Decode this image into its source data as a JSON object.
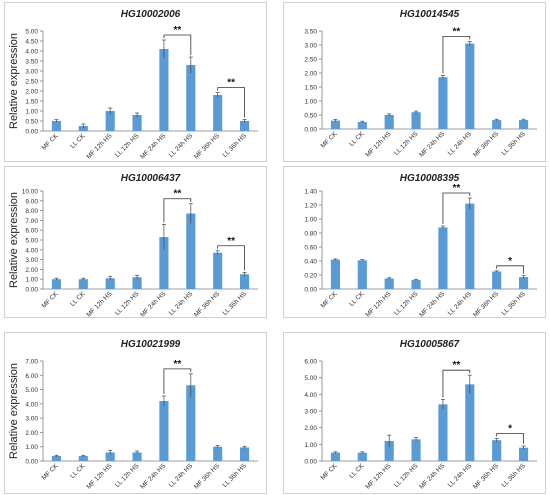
{
  "colors": {
    "bar": "#5b9bd5",
    "axis": "#7f7f7f",
    "text": "#333333",
    "title": "#222222"
  },
  "categories": [
    "MF CK",
    "LL CK",
    "MF 12h HS",
    "LL 12h HS",
    "MF 24h HS",
    "LL 24h HS",
    "MF 36h HS",
    "LL 36h HS"
  ],
  "chart_data": [
    {
      "type": "bar",
      "title": "HG10002006",
      "ylabel": "Relative expression",
      "ylim": [
        0,
        5
      ],
      "yticks": [
        "0.00",
        "0.50",
        "1.00",
        "1.50",
        "2.00",
        "2.50",
        "3.00",
        "3.50",
        "4.00",
        "4.50",
        "5.00"
      ],
      "values": [
        0.5,
        0.25,
        1.0,
        0.8,
        4.1,
        3.3,
        1.8,
        0.5
      ],
      "errors": [
        0.07,
        0.1,
        0.15,
        0.1,
        0.45,
        0.4,
        0.12,
        0.08
      ],
      "significance": [
        {
          "from": 4,
          "to": 5,
          "label": "**"
        },
        {
          "from": 6,
          "to": 7,
          "label": "**"
        }
      ]
    },
    {
      "type": "bar",
      "title": "HG10014545",
      "ylabel": "",
      "ylim": [
        0,
        3.5
      ],
      "yticks": [
        "0.00",
        "0.50",
        "1.00",
        "1.50",
        "2.00",
        "2.50",
        "3.00",
        "3.50"
      ],
      "values": [
        0.3,
        0.25,
        0.5,
        0.6,
        1.85,
        3.05,
        0.32,
        0.32
      ],
      "errors": [
        0.04,
        0.03,
        0.04,
        0.04,
        0.06,
        0.08,
        0.03,
        0.03
      ],
      "significance": [
        {
          "from": 4,
          "to": 5,
          "label": "**"
        }
      ]
    },
    {
      "type": "bar",
      "title": "HG10006437",
      "ylabel": "Relative expression",
      "ylim": [
        0,
        10
      ],
      "yticks": [
        "0.00",
        "1.00",
        "2.00",
        "3.00",
        "4.00",
        "5.00",
        "6.00",
        "7.00",
        "8.00",
        "9.00",
        "10.00"
      ],
      "values": [
        1.0,
        1.0,
        1.1,
        1.2,
        5.3,
        7.7,
        3.7,
        1.5
      ],
      "errors": [
        0.1,
        0.1,
        0.2,
        0.2,
        1.3,
        1.0,
        0.2,
        0.2
      ],
      "significance": [
        {
          "from": 4,
          "to": 5,
          "label": "**"
        },
        {
          "from": 6,
          "to": 7,
          "label": "**"
        }
      ]
    },
    {
      "type": "bar",
      "title": "HG10008395",
      "ylabel": "",
      "ylim": [
        0,
        1.4
      ],
      "yticks": [
        "0.00",
        "0.20",
        "0.40",
        "0.60",
        "0.80",
        "1.00",
        "1.20",
        "1.40"
      ],
      "values": [
        0.42,
        0.41,
        0.15,
        0.13,
        0.88,
        1.22,
        0.25,
        0.17
      ],
      "errors": [
        0.01,
        0.01,
        0.01,
        0.01,
        0.02,
        0.08,
        0.01,
        0.02
      ],
      "significance": [
        {
          "from": 4,
          "to": 5,
          "label": "**"
        },
        {
          "from": 6,
          "to": 7,
          "label": "*"
        }
      ]
    },
    {
      "type": "bar",
      "title": "HG10021999",
      "ylabel": "Relative expression",
      "ylim": [
        0,
        7
      ],
      "yticks": [
        "0.00",
        "1.00",
        "2.00",
        "3.00",
        "4.00",
        "5.00",
        "6.00",
        "7.00"
      ],
      "values": [
        0.35,
        0.35,
        0.6,
        0.6,
        4.2,
        5.3,
        1.0,
        0.95
      ],
      "errors": [
        0.05,
        0.05,
        0.15,
        0.1,
        0.35,
        0.8,
        0.08,
        0.08
      ],
      "significance": [
        {
          "from": 4,
          "to": 5,
          "label": "**"
        }
      ]
    },
    {
      "type": "bar",
      "title": "HG10005867",
      "ylabel": "",
      "ylim": [
        0,
        6
      ],
      "yticks": [
        "0.00",
        "1.00",
        "2.00",
        "3.00",
        "4.00",
        "5.00",
        "6.00"
      ],
      "values": [
        0.5,
        0.5,
        1.2,
        1.3,
        3.4,
        4.6,
        1.25,
        0.8
      ],
      "errors": [
        0.05,
        0.05,
        0.35,
        0.1,
        0.3,
        0.55,
        0.1,
        0.1
      ],
      "significance": [
        {
          "from": 4,
          "to": 5,
          "label": "**"
        },
        {
          "from": 6,
          "to": 7,
          "label": "*"
        }
      ]
    }
  ]
}
